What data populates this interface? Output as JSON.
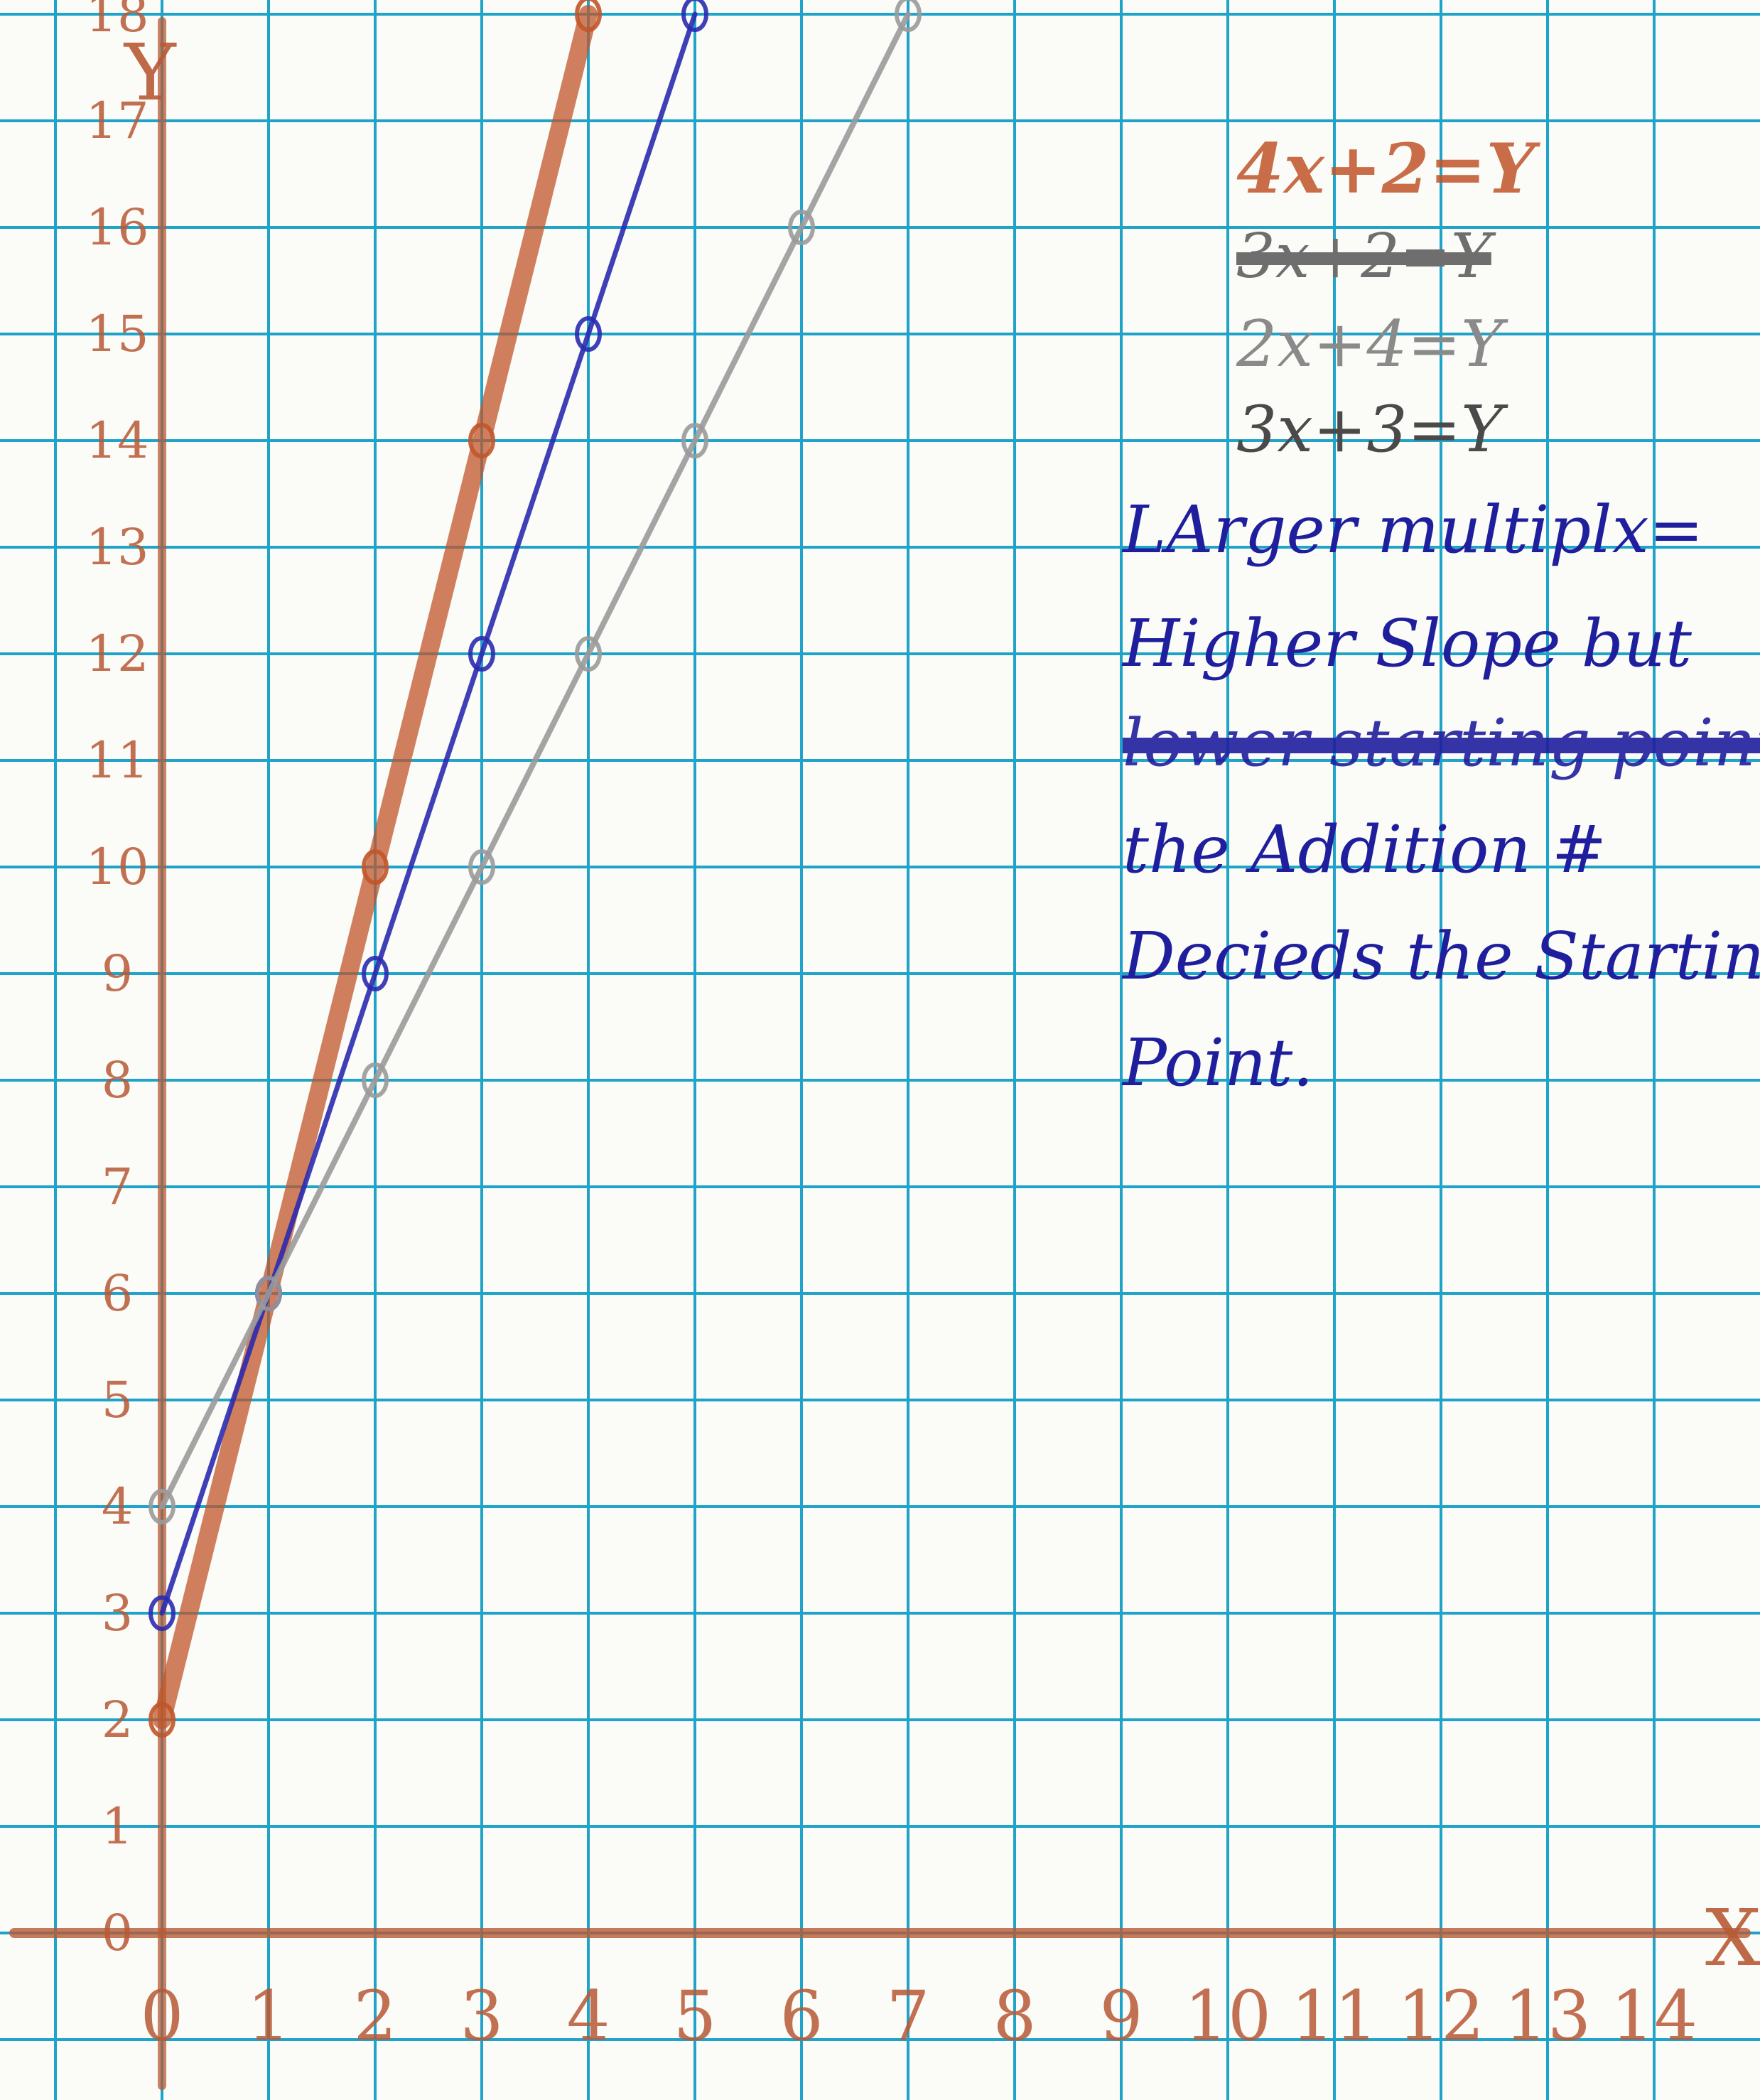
{
  "chart_data": {
    "type": "line",
    "xlabel": "X",
    "ylabel": "Y",
    "xlim": [
      0,
      14
    ],
    "ylim": [
      0,
      18
    ],
    "grid": true,
    "x_ticks": [
      "0",
      "1",
      "2",
      "3",
      "4",
      "5",
      "6",
      "7",
      "8",
      "9",
      "10",
      "11",
      "12",
      "13",
      "14"
    ],
    "y_ticks": [
      "0",
      "1",
      "2",
      "3",
      "4",
      "5",
      "6",
      "7",
      "8",
      "9",
      "10",
      "11",
      "12",
      "13",
      "14",
      "15",
      "16",
      "17",
      "18"
    ],
    "series": [
      {
        "color": "#c0552a",
        "x": [
          0,
          1,
          2,
          3,
          4
        ],
        "y": [
          2,
          6,
          10,
          14,
          18
        ]
      },
      {
        "color": "#2a2ab0",
        "x": [
          0,
          1,
          2,
          3,
          4,
          5
        ],
        "y": [
          3,
          6,
          9,
          12,
          15,
          18
        ]
      },
      {
        "color": "#9a9a9a",
        "x": [
          0,
          1,
          2,
          3,
          4,
          5,
          6,
          7
        ],
        "y": [
          4,
          6,
          8,
          10,
          12,
          14,
          16,
          18
        ]
      }
    ]
  },
  "notes": {
    "eq1": "4x+2=Y",
    "eq2_struck": "3x+2=Y",
    "eq3": "2x+4=Y",
    "eq4": "3x+3=Y",
    "line1": "LArger multiplx=",
    "line2": "Higher Slope but",
    "line3_struck": "lower starting point",
    "line4": "the Addition #",
    "line5": "Decieds the Starting",
    "line6": "Point."
  }
}
